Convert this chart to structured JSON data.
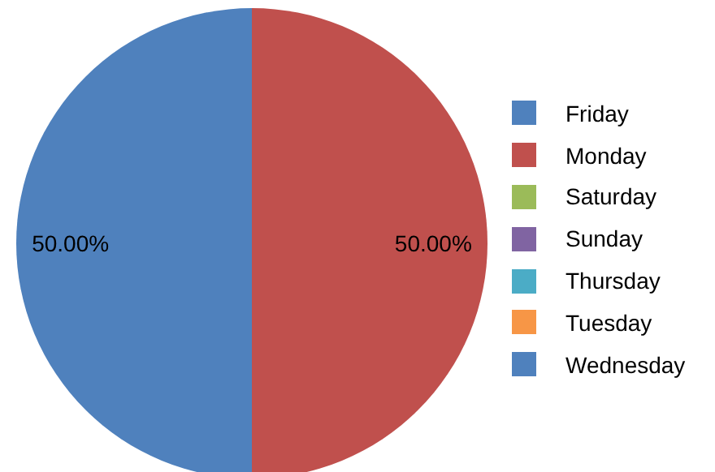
{
  "chart_data": {
    "type": "pie",
    "categories": [
      "Friday",
      "Monday",
      "Saturday",
      "Sunday",
      "Thursday",
      "Tuesday",
      "Wednesday"
    ],
    "values": [
      0,
      50,
      0,
      0,
      0,
      0,
      50
    ],
    "colors": [
      "#4f81bd",
      "#c0504d",
      "#9bbb59",
      "#8064a2",
      "#4bacc6",
      "#f79646",
      "#4f81bd"
    ],
    "value_labels": [
      null,
      "50.00%",
      null,
      null,
      null,
      null,
      "50.00%"
    ],
    "legend": "right"
  }
}
